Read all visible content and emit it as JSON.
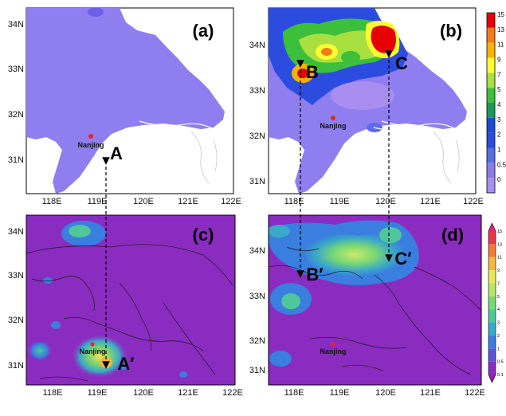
{
  "panels": [
    {
      "id": "a",
      "label": "(a)"
    },
    {
      "id": "b",
      "label": "(b)"
    },
    {
      "id": "c",
      "label": "(c)"
    },
    {
      "id": "d",
      "label": "(d)"
    }
  ],
  "axes": {
    "lat_ticks": [
      "34N",
      "33N",
      "32N",
      "31N"
    ],
    "lon_ticks": [
      "118E",
      "119E",
      "120E",
      "121E",
      "122E"
    ]
  },
  "city": {
    "name": "Nanjing",
    "marker_color": "#e5261f"
  },
  "points": {
    "A": "A",
    "B": "B",
    "C": "C",
    "A_prime": "A′",
    "B_prime": "B′",
    "C_prime": "C′"
  },
  "colorbar_obs": {
    "labels": [
      "15",
      "13",
      "11",
      "9",
      "7",
      "5",
      "4",
      "3",
      "2",
      "1",
      "0.5",
      "0"
    ],
    "colors": [
      "#e60000",
      "#f57a1a",
      "#ffb000",
      "#ffff30",
      "#a8e040",
      "#3cc03c",
      "#1a9a5a",
      "#1c4cd6",
      "#2c4ce0",
      "#5a6ce8",
      "#8a7cec",
      "#a98ef2"
    ]
  },
  "colorbar_model": {
    "labels": [
      "15",
      "13",
      "11",
      "9",
      "7",
      "5",
      "4",
      "3",
      "2",
      "1",
      "0.5",
      "0.1"
    ],
    "colors": [
      "#e6237d",
      "#e8394b",
      "#f07a3a",
      "#f3b840",
      "#e8e85c",
      "#b7e664",
      "#7ad872",
      "#4ec79a",
      "#3aa8c8",
      "#3a7ee0",
      "#5a54d8",
      "#8a2cc0",
      "#a01aaa"
    ]
  }
}
